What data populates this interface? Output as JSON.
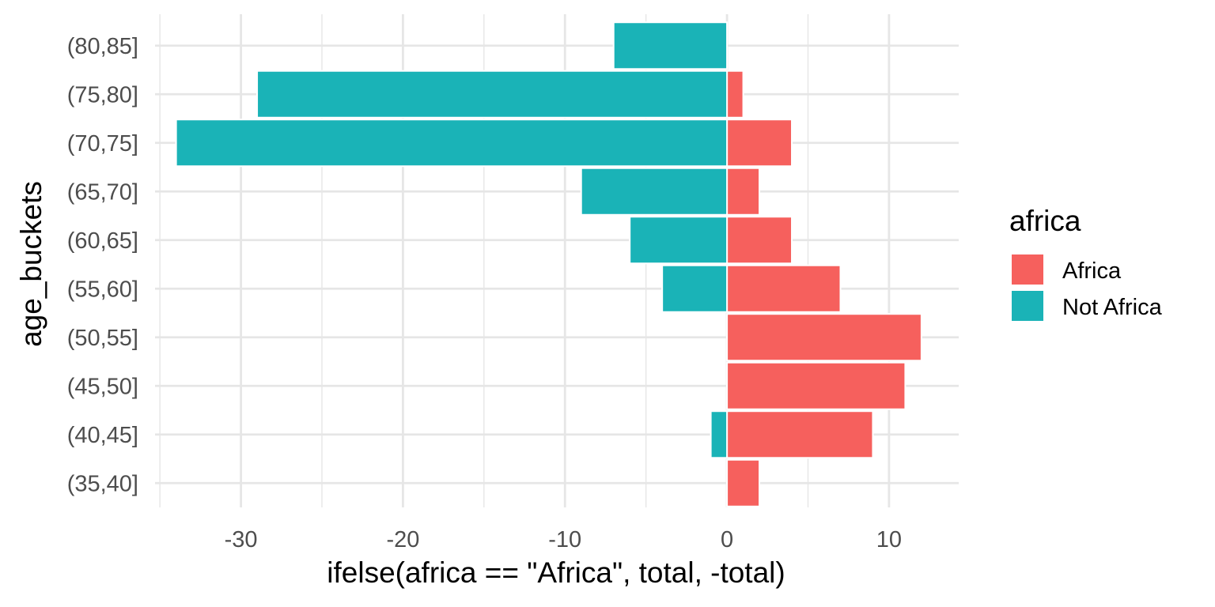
{
  "chart_data": {
    "type": "bar",
    "orientation": "horizontal",
    "categories": [
      "(35,40]",
      "(40,45]",
      "(45,50]",
      "(50,55]",
      "(55,60]",
      "(60,65]",
      "(65,70]",
      "(70,75]",
      "(75,80]",
      "(80,85]"
    ],
    "series": [
      {
        "name": "Africa",
        "color": "#F8766D",
        "values": [
          2,
          9,
          11,
          12,
          7,
          4,
          2,
          4,
          1,
          0
        ]
      },
      {
        "name": "Not Africa",
        "color": "#00BFC4",
        "values": [
          0,
          -1,
          0,
          0,
          -4,
          -6,
          -9,
          -34,
          -29,
          -7
        ]
      }
    ],
    "xlabel": "ifelse(africa == \"Africa\", total, -total)",
    "ylabel": "age_buckets",
    "xlim": [
      -35.3,
      14.3
    ],
    "xticks": [
      -30,
      -20,
      -10,
      0,
      10
    ],
    "xtick_labels": [
      "-30",
      "-20",
      "-10",
      "0",
      "10"
    ],
    "grid": true,
    "legend": {
      "title": "africa",
      "placement": "right",
      "entries": [
        "Africa",
        "Not Africa"
      ]
    }
  },
  "colors": {
    "africa": "#F6605D",
    "not_africa": "#1AB3B7",
    "grid": "#E6E6E6",
    "tick_text": "#4d4d4d"
  }
}
